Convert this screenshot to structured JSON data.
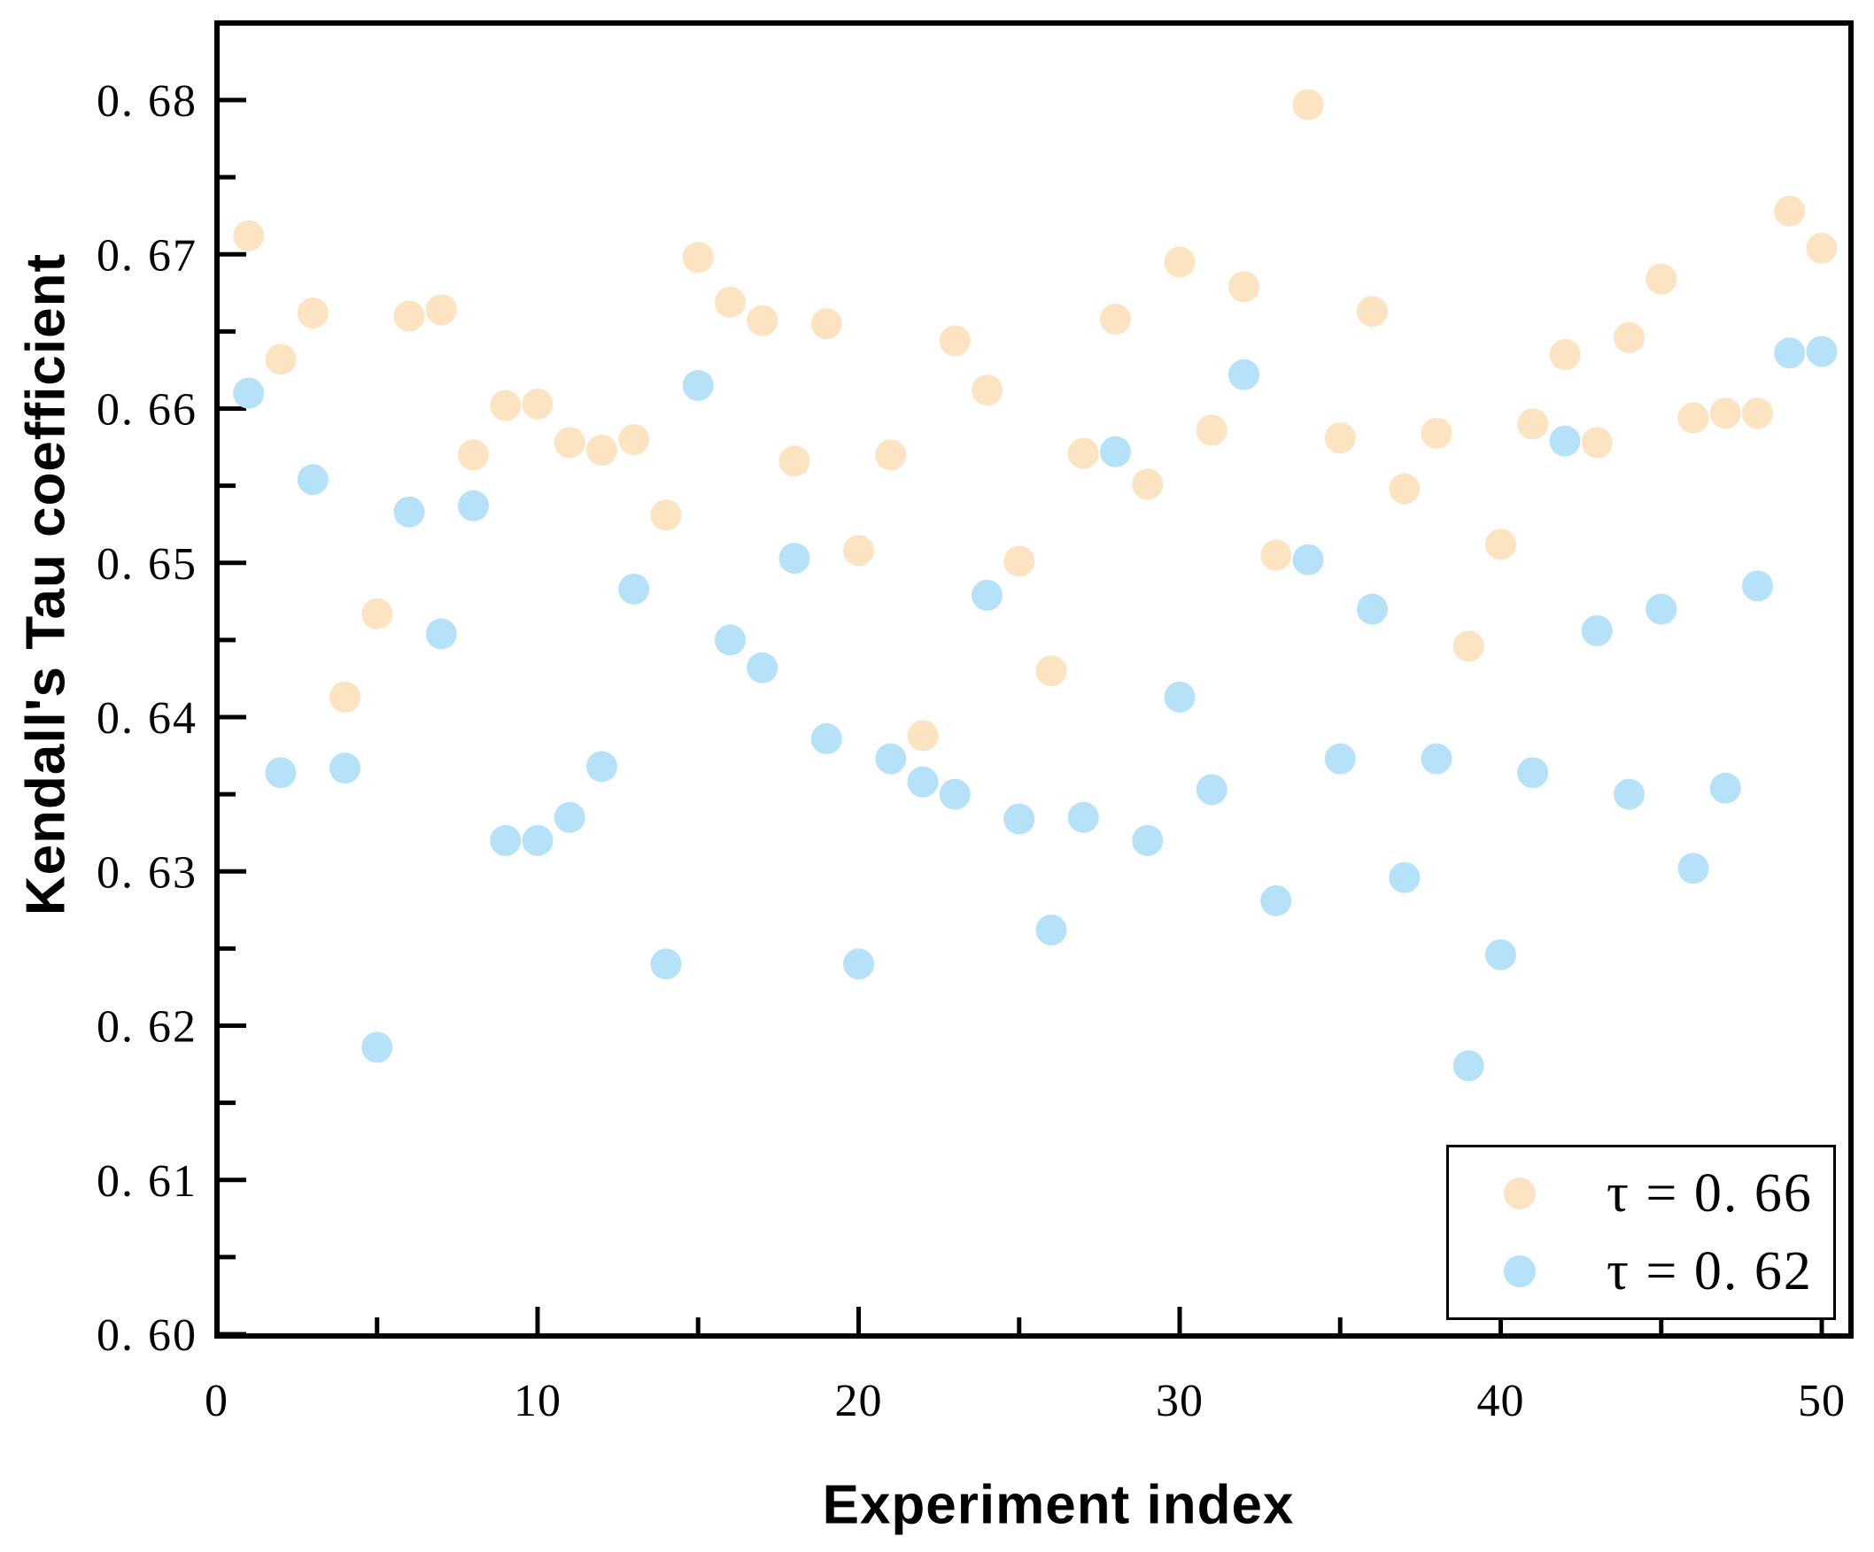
{
  "chart_data": {
    "type": "scatter",
    "title": "",
    "xlabel": "Experiment index",
    "ylabel": "Kendall's Tau coefficient",
    "xlim": [
      0,
      50.9
    ],
    "ylim": [
      0.6,
      0.685
    ],
    "grid": "off",
    "legend_position": "bottom-right",
    "axis_color": "#000000",
    "background_color": "#ffffff",
    "x": [
      1,
      2,
      3,
      4,
      5,
      6,
      7,
      8,
      9,
      10,
      11,
      12,
      13,
      14,
      15,
      16,
      17,
      18,
      19,
      20,
      21,
      22,
      23,
      24,
      25,
      26,
      27,
      28,
      29,
      30,
      31,
      32,
      33,
      34,
      35,
      36,
      37,
      38,
      39,
      40,
      41,
      42,
      43,
      44,
      45,
      46,
      47,
      48,
      49,
      50
    ],
    "series": [
      {
        "name": "τ = 0. 66",
        "marker": "circle",
        "color": "#FCE3C2",
        "values": [
          0.6712,
          0.6632,
          0.6662,
          0.6413,
          0.6467,
          0.666,
          0.6664,
          0.657,
          0.6602,
          0.6603,
          0.6578,
          0.6573,
          0.658,
          0.6531,
          0.6698,
          0.6669,
          0.6657,
          0.6566,
          0.6655,
          0.6508,
          0.657,
          0.6388,
          0.6644,
          0.6612,
          0.6501,
          0.643,
          0.6571,
          0.6658,
          0.6551,
          0.6695,
          0.6586,
          0.6679,
          0.6505,
          0.6797,
          0.6581,
          0.6663,
          0.6548,
          0.6584,
          0.6446,
          0.6512,
          0.659,
          0.6635,
          0.6578,
          0.6646,
          0.6684,
          0.6594,
          0.6597,
          0.6597,
          0.6728,
          0.6704
        ]
      },
      {
        "name": "τ = 0. 62",
        "marker": "circle",
        "color": "#B5E2F8",
        "values": [
          0.661,
          0.6364,
          0.6554,
          0.6367,
          0.6186,
          0.6533,
          0.6454,
          0.6537,
          0.632,
          0.632,
          0.6335,
          0.6368,
          0.6483,
          0.624,
          0.6615,
          0.645,
          0.6432,
          0.6503,
          0.6386,
          0.624,
          0.6373,
          0.6358,
          0.635,
          0.6479,
          0.6334,
          0.6262,
          0.6335,
          0.6572,
          0.632,
          0.6413,
          0.6353,
          0.6622,
          0.6281,
          0.6502,
          0.6373,
          0.647,
          0.6296,
          0.6373,
          0.6174,
          0.6246,
          0.6364,
          0.6579,
          0.6456,
          0.635,
          0.647,
          0.6302,
          0.6354,
          0.6485,
          0.6636,
          0.6637
        ]
      }
    ],
    "x_axis": {
      "major_ticks": [
        0,
        10,
        20,
        30,
        40,
        50
      ],
      "major_labels": [
        "0",
        "10",
        "20",
        "30",
        "40",
        "50"
      ],
      "minor_ticks": [
        5,
        15,
        25,
        35,
        45
      ]
    },
    "y_axis": {
      "major_ticks": [
        0.6,
        0.61,
        0.62,
        0.63,
        0.64,
        0.65,
        0.66,
        0.67,
        0.68
      ],
      "major_labels": [
        "0. 60",
        "0. 61",
        "0. 62",
        "0. 63",
        "0. 64",
        "0. 65",
        "0. 66",
        "0. 67",
        "0. 68"
      ],
      "minor_ticks": [
        0.605,
        0.615,
        0.625,
        0.635,
        0.645,
        0.655,
        0.665,
        0.675
      ]
    }
  }
}
